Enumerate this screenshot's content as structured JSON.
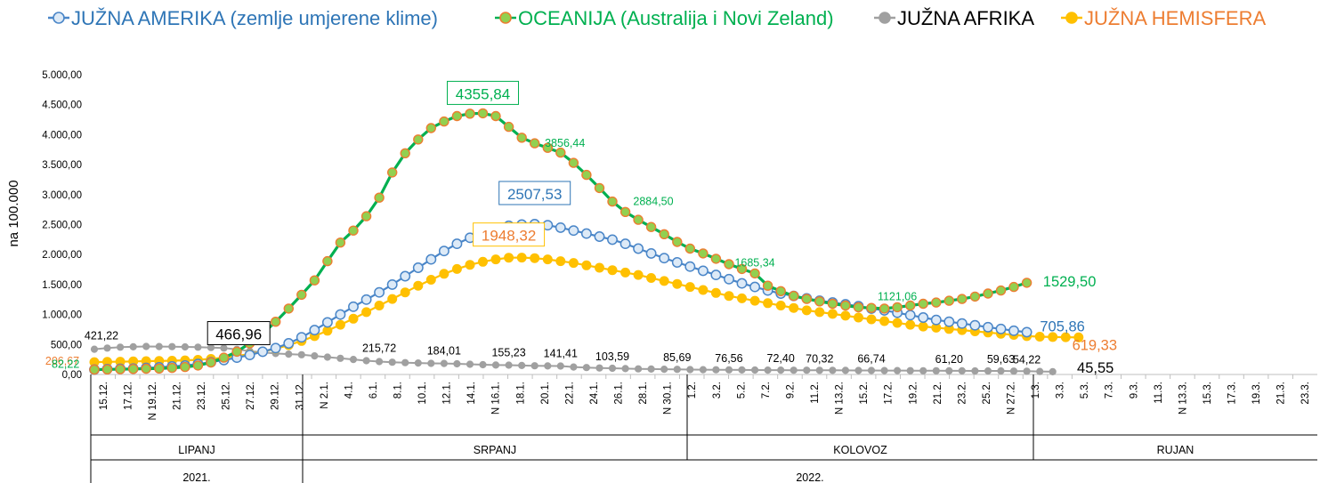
{
  "chart_data": {
    "type": "line",
    "ylabel": "na 100.000",
    "ylim": [
      0,
      5000
    ],
    "yticks": [
      "0,00",
      "500,00",
      "1.000,00",
      "1.500,00",
      "2.000,00",
      "2.500,00",
      "3.000,00",
      "3.500,00",
      "4.000,00",
      "4.500,00",
      "5.000,00"
    ],
    "yticks_values": [
      0,
      500,
      1000,
      1500,
      2000,
      2500,
      3000,
      3500,
      4000,
      4500,
      5000
    ],
    "x_labels": [
      "15.12.",
      "17.12.",
      "N 19.12.",
      "21.12.",
      "23.12.",
      "25.12.",
      "27.12.",
      "29.12.",
      "31.12.",
      "N  2.1.",
      "4.1.",
      "6.1.",
      "8.1.",
      "10.1.",
      "12.1.",
      "14.1.",
      "N 16.1.",
      "18.1.",
      "20.1.",
      "22.1.",
      "24.1.",
      "26.1.",
      "28.1.",
      "N 30.1.",
      "1.2.",
      "3.2.",
      "5.2.",
      "7.2.",
      "9.2.",
      "11.2.",
      "N 13.2.",
      "15.2.",
      "17.2.",
      "19.2.",
      "21.2.",
      "23.2.",
      "25.2.",
      "N 27.2.",
      "1.3.",
      "3.3.",
      "5.3.",
      "7.3.",
      "9.3.",
      "11.3.",
      "N 13.3.",
      "15.3.",
      "17.3.",
      "19.3.",
      "21.3.",
      "23.3."
    ],
    "month_groups": [
      "LIPANJ",
      "SRPANJ",
      "KOLOVOZ",
      "RUJAN"
    ],
    "year_groups": [
      "2021.",
      "2022."
    ],
    "series": [
      {
        "name": "JUŽNA AMERIKA (zemlje umjerene klime)",
        "color": "#4a86c8",
        "values": [
          82.22,
          90,
          95,
          100,
          110,
          120,
          135,
          150,
          175,
          205,
          240,
          280,
          325,
          380,
          440,
          520,
          620,
          740,
          870,
          1000,
          1130,
          1250,
          1370,
          1500,
          1640,
          1780,
          1920,
          2060,
          2180,
          2280,
          2370,
          2430,
          2480,
          2500,
          2507.53,
          2490,
          2450,
          2400,
          2350,
          2300,
          2250,
          2180,
          2100,
          2020,
          1940,
          1870,
          1800,
          1730,
          1660,
          1590,
          1520,
          1460,
          1400,
          1350,
          1310,
          1270,
          1230,
          1200,
          1170,
          1140,
          1100,
          1070,
          1030,
          990,
          950,
          910,
          880,
          850,
          820,
          790,
          760,
          730,
          705.86
        ],
        "labels": [
          {
            "index": 34,
            "text": "2507,53",
            "boxed": true
          },
          {
            "index": 72,
            "text": "705,86",
            "boxed": false
          }
        ]
      },
      {
        "name": "OCEANIJA (Australija i Novi Zeland)",
        "color": "#00b050",
        "values": [
          82.22,
          85,
          88,
          92,
          96,
          100,
          110,
          125,
          150,
          200,
          280,
          380,
          520,
          680,
          880,
          1100,
          1330,
          1570,
          1890,
          2200,
          2400,
          2640,
          2950,
          3370,
          3690,
          3920,
          4110,
          4220,
          4310,
          4350,
          4355.84,
          4310,
          4130,
          3950,
          3856.44,
          3780,
          3700,
          3530,
          3330,
          3110,
          2884.5,
          2710,
          2580,
          2460,
          2340,
          2210,
          2100,
          2020,
          1930,
          1840,
          1760,
          1685.34,
          1480,
          1390,
          1310,
          1260,
          1220,
          1180,
          1150,
          1120,
          1110,
          1100,
          1121.06,
          1150,
          1180,
          1200,
          1230,
          1260,
          1300,
          1350,
          1400,
          1460,
          1529.5
        ],
        "labels": [
          {
            "index": 30,
            "text": "4355,84",
            "boxed": true
          },
          {
            "index": 34,
            "text": "3856,44",
            "boxed": false
          },
          {
            "index": 40,
            "text": "2884,50",
            "boxed": false
          },
          {
            "index": 51,
            "text": "1685,34",
            "boxed": false
          },
          {
            "index": 62,
            "text": "1121,06",
            "boxed": false
          },
          {
            "index": 72,
            "text": "1529,50",
            "boxed": false
          }
        ]
      },
      {
        "name": "JUŽNA AFRIKA",
        "color": "#a0a0a0",
        "values": [
          421.22,
          440,
          455,
          462,
          466.96,
          466,
          464,
          460,
          455,
          450,
          440,
          420,
          390,
          370,
          350,
          340,
          330,
          310,
          290,
          270,
          250,
          230,
          215.72,
          205,
          198,
          192,
          186,
          184.01,
          178,
          170,
          163,
          158,
          155.23,
          150,
          146,
          143,
          141.41,
          125,
          115,
          108,
          103.59,
          98,
          94,
          90,
          87,
          85.69,
          82,
          80,
          78,
          76.56,
          75,
          74,
          73,
          72.4,
          71.5,
          71,
          70.32,
          69,
          68,
          67.5,
          66.74,
          66,
          65,
          64,
          63,
          62,
          61.2,
          60.5,
          60,
          59.8,
          59.63,
          57,
          54.22,
          50,
          45.55
        ],
        "labels": [
          {
            "index": 0,
            "text": "421,22",
            "boxed": false
          },
          {
            "index": 4,
            "text": "466,96",
            "boxed": true
          },
          {
            "index": 22,
            "text": "215,72",
            "boxed": false
          },
          {
            "index": 27,
            "text": "184,01",
            "boxed": false
          },
          {
            "index": 32,
            "text": "155,23",
            "boxed": false
          },
          {
            "index": 36,
            "text": "141,41",
            "boxed": false
          },
          {
            "index": 40,
            "text": "103,59",
            "boxed": false
          },
          {
            "index": 45,
            "text": "85,69",
            "boxed": false
          },
          {
            "index": 49,
            "text": "76,56",
            "boxed": false
          },
          {
            "index": 53,
            "text": "72,40",
            "boxed": false
          },
          {
            "index": 56,
            "text": "70,32",
            "boxed": false
          },
          {
            "index": 60,
            "text": "66,74",
            "boxed": false
          },
          {
            "index": 66,
            "text": "61,20",
            "boxed": false
          },
          {
            "index": 70,
            "text": "59,63",
            "boxed": false
          },
          {
            "index": 72,
            "text": "54,22",
            "boxed": false
          },
          {
            "index": 74,
            "text": "45,55",
            "boxed": false
          }
        ]
      },
      {
        "name": "JUŽNA HEMISFERA",
        "color": "#ffc000",
        "values": [
          206.67,
          210,
          214,
          218,
          222,
          226,
          230,
          236,
          245,
          260,
          280,
          310,
          340,
          380,
          430,
          490,
          560,
          640,
          730,
          830,
          930,
          1040,
          1150,
          1260,
          1370,
          1480,
          1580,
          1680,
          1760,
          1830,
          1880,
          1920,
          1948.32,
          1950,
          1940,
          1920,
          1890,
          1860,
          1820,
          1780,
          1740,
          1700,
          1660,
          1610,
          1560,
          1510,
          1460,
          1410,
          1360,
          1310,
          1270,
          1230,
          1190,
          1150,
          1110,
          1070,
          1040,
          1010,
          980,
          950,
          920,
          890,
          860,
          830,
          800,
          780,
          760,
          740,
          720,
          700,
          680,
          660,
          640,
          630,
          625,
          622,
          619.33
        ],
        "labels": [
          {
            "index": 0,
            "text": "206,67",
            "boxed": false
          },
          {
            "index": 32,
            "text": "1948,32",
            "boxed": true
          },
          {
            "index": 76,
            "text": "619,33",
            "boxed": false
          }
        ]
      }
    ],
    "extra_labels": [
      {
        "text": "82,22",
        "color": "#00b050"
      }
    ]
  }
}
